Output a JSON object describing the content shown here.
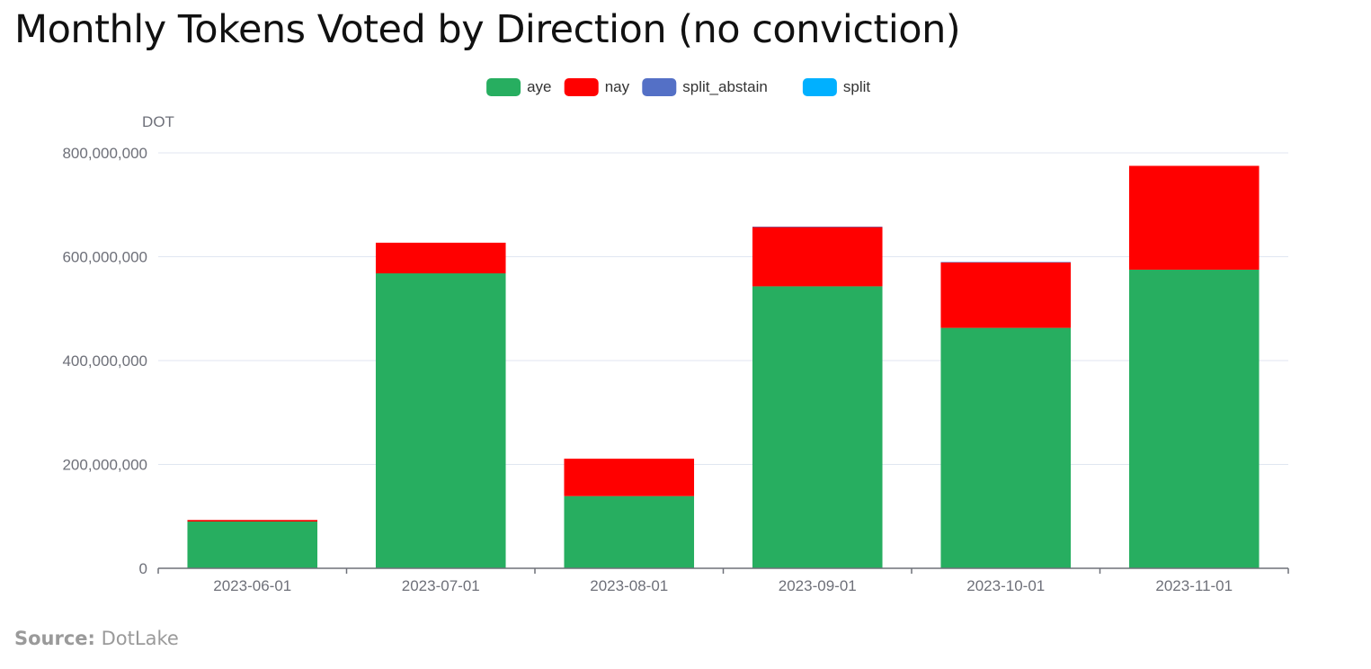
{
  "title": "Monthly Tokens Voted by Direction (no conviction)",
  "source": {
    "label": "Source:",
    "value": "DotLake"
  },
  "chart_data": {
    "type": "bar",
    "stacked": true,
    "title": "Monthly Tokens Voted by Direction (no conviction)",
    "xlabel": "",
    "ylabel": "DOT",
    "categories": [
      "2023-06-01",
      "2023-07-01",
      "2023-08-01",
      "2023-09-01",
      "2023-10-01",
      "2023-11-01"
    ],
    "ylim": [
      0,
      800000000
    ],
    "yticks": [
      0,
      200000000,
      400000000,
      600000000,
      800000000
    ],
    "ytick_labels": [
      "0",
      "200,000,000",
      "400,000,000",
      "600,000,000",
      "800,000,000"
    ],
    "grid": true,
    "legend_position": "top-center",
    "series": [
      {
        "name": "aye",
        "color": "#27ae60",
        "values": [
          90000000,
          568000000,
          139000000,
          543000000,
          463000000,
          575000000
        ]
      },
      {
        "name": "nay",
        "color": "#ff0000",
        "values": [
          3000000,
          59000000,
          72000000,
          114000000,
          126000000,
          200000000
        ]
      },
      {
        "name": "split_abstain",
        "color": "#5470c6",
        "values": [
          0,
          0,
          0,
          1000000,
          1000000,
          0
        ]
      },
      {
        "name": "split",
        "color": "#00b0ff",
        "values": [
          0,
          0,
          0,
          0,
          0,
          0
        ]
      }
    ]
  }
}
